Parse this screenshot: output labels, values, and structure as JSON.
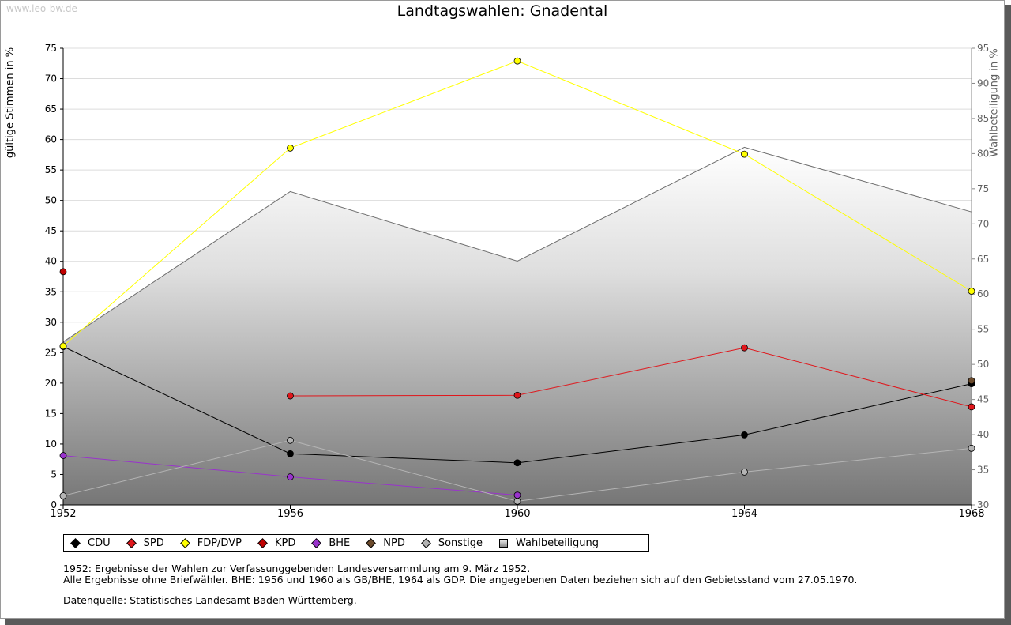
{
  "watermark": "www.leo-bw.de",
  "chart_data": {
    "type": "line",
    "title": "Landtagswahlen: Gnadental",
    "ylabel": "gültige Stimmen in %",
    "y2label": "Wahlbeteiligung in %",
    "x": [
      "1952",
      "1956",
      "1960",
      "1964",
      "1968"
    ],
    "ylim": [
      0,
      75
    ],
    "y2lim": [
      30,
      95
    ],
    "yticks": [
      "0",
      "5",
      "10",
      "15",
      "20",
      "25",
      "30",
      "35",
      "40",
      "45",
      "50",
      "55",
      "60",
      "65",
      "70",
      "75"
    ],
    "y2ticks": [
      "30",
      "35",
      "40",
      "45",
      "50",
      "55",
      "60",
      "65",
      "70",
      "75",
      "80",
      "85",
      "90",
      "95"
    ],
    "series": [
      {
        "name": "CDU",
        "color": "#000000",
        "values": [
          26.0,
          8.4,
          6.9,
          11.5,
          19.9
        ]
      },
      {
        "name": "SPD",
        "color": "#e0161b",
        "values": [
          null,
          17.9,
          18.0,
          25.8,
          16.1
        ]
      },
      {
        "name": "FDP/DVP",
        "color": "#ffff00",
        "values": [
          26.1,
          58.6,
          72.9,
          57.6,
          35.1
        ]
      },
      {
        "name": "KPD",
        "color": "#c00000",
        "values": [
          38.3,
          null,
          null,
          null,
          null
        ]
      },
      {
        "name": "BHE",
        "color": "#9933cc",
        "values": [
          8.1,
          4.6,
          1.6,
          null,
          null
        ]
      },
      {
        "name": "NPD",
        "color": "#6b4a2b",
        "values": [
          null,
          null,
          null,
          null,
          20.4
        ]
      },
      {
        "name": "Sonstige",
        "color": "#b4b4b4",
        "values": [
          1.5,
          10.6,
          0.6,
          5.4,
          9.3
        ]
      }
    ],
    "turnout": {
      "name": "Wahlbeteiligung",
      "values": [
        53.2,
        74.6,
        64.7,
        80.9,
        71.7
      ]
    },
    "legend": [
      "CDU",
      "SPD",
      "FDP/DVP",
      "KPD",
      "BHE",
      "NPD",
      "Sonstige",
      "Wahlbeteiligung"
    ]
  },
  "notes": {
    "line1": "1952: Ergebnisse der Wahlen zur Verfassunggebenden Landesversammlung am 9. März 1952.",
    "line2": "Alle Ergebnisse ohne Briefwähler. BHE: 1956 und 1960 als GB/BHE, 1964 als GDP. Die angegebenen Daten beziehen sich auf den Gebietsstand vom 27.05.1970.",
    "source": "Datenquelle: Statistisches Landesamt Baden-Württemberg."
  }
}
